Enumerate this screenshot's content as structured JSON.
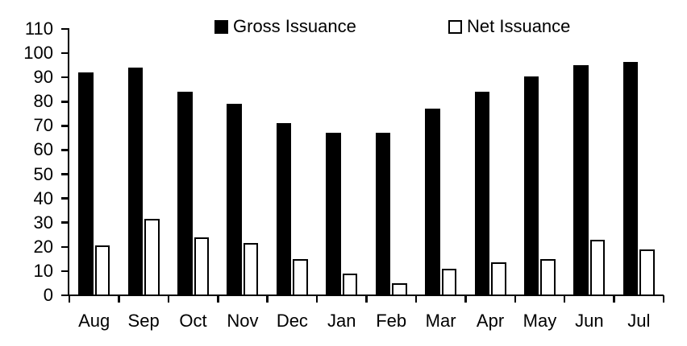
{
  "chart_data": {
    "type": "bar",
    "title": "",
    "xlabel": "",
    "ylabel": "",
    "categories": [
      "Aug",
      "Sep",
      "Oct",
      "Nov",
      "Dec",
      "Jan",
      "Feb",
      "Mar",
      "Apr",
      "May",
      "Jun",
      "Jul"
    ],
    "series": [
      {
        "name": "Gross Issuance",
        "swatch": "filled-black-square",
        "fill": "#000000",
        "border": "#000000",
        "values": [
          92,
          94,
          84,
          79,
          71,
          67,
          67,
          77,
          84,
          90.5,
          95,
          96.5
        ]
      },
      {
        "name": "Net Issuance",
        "swatch": "outlined-white-square",
        "fill": "#ffffff",
        "border": "#000000",
        "values": [
          20.5,
          31.5,
          24,
          21.5,
          15,
          9,
          5,
          11,
          13.5,
          15,
          23,
          19
        ]
      }
    ],
    "ylim": [
      0,
      110
    ],
    "yticks": [
      0,
      10,
      20,
      30,
      40,
      50,
      60,
      70,
      80,
      90,
      100,
      110
    ],
    "grid": false,
    "legend_position": "top"
  },
  "colors": {
    "axis": "#000000",
    "text": "#000000",
    "background": "#ffffff",
    "gross_fill": "#000000",
    "net_fill": "#ffffff",
    "net_border": "#000000"
  }
}
